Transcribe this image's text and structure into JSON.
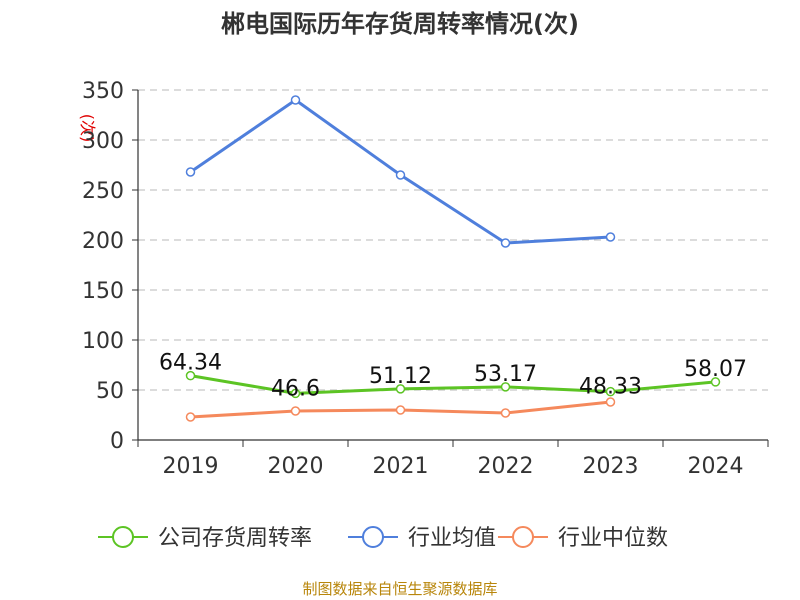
{
  "chart_data": {
    "type": "line",
    "title": "郴电国际历年存货周转率情况(次)",
    "unit_label": "(次)",
    "categories": [
      "2019",
      "2020",
      "2021",
      "2022",
      "2023",
      "2024"
    ],
    "ylim": [
      0,
      350
    ],
    "yticks": [
      0,
      50,
      100,
      150,
      200,
      250,
      300,
      350
    ],
    "grid": true,
    "legend_position": "bottom",
    "series": [
      {
        "name": "公司存货周转率",
        "color": "#5cc424",
        "values": [
          64.34,
          46.6,
          51.12,
          53.17,
          48.33,
          58.07
        ],
        "labels": [
          "64.34",
          "46.6",
          "51.12",
          "53.17",
          "48.33",
          "58.07"
        ]
      },
      {
        "name": "行业均值",
        "color": "#4f7fdc",
        "values": [
          268,
          340,
          265,
          197,
          203,
          null
        ]
      },
      {
        "name": "行业中位数",
        "color": "#f5895c",
        "values": [
          23,
          29,
          30,
          27,
          38,
          null
        ]
      }
    ]
  },
  "source": "制图数据来自恒生聚源数据库"
}
